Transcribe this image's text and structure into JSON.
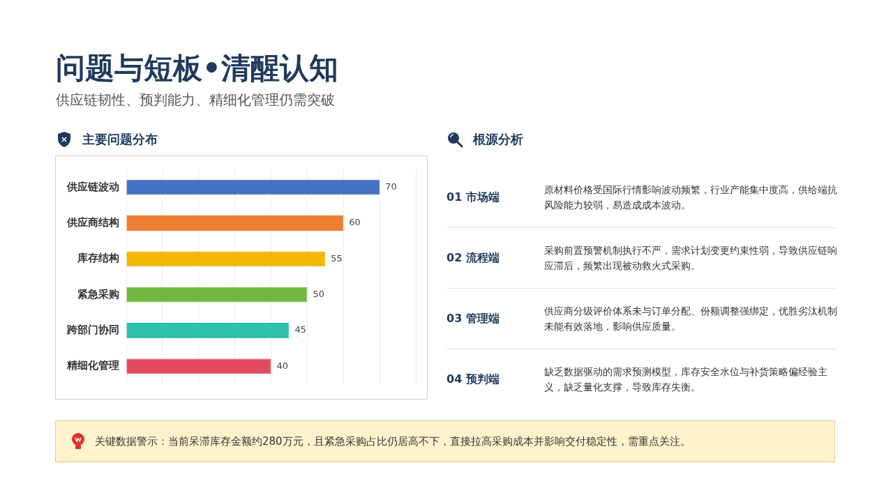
{
  "chart_data": {
    "type": "bar",
    "orientation": "horizontal",
    "title": "问题与短板•清醒认知",
    "subtitle": "供应链韧性、预判能力、精细化管理仍需突破",
    "categories": [
      "供应链波动",
      "供应商结构",
      "库存结构",
      "紧急采购",
      "跨部门协同",
      "精细化管理"
    ],
    "values": [
      70,
      60,
      55,
      50,
      45,
      40
    ],
    "colors": [
      "#4472c4",
      "#ed7d31",
      "#f2b800",
      "#70b840",
      "#2ebfad",
      "#e34a5f"
    ],
    "xlim": [
      0,
      80
    ],
    "xticks": [
      {
        "value": 0,
        "label": null
      },
      {
        "value": 10,
        "label": null
      },
      {
        "value": 20,
        "label": null
      },
      {
        "value": 30,
        "label": null
      },
      {
        "value": 40,
        "label": null
      },
      {
        "value": 50,
        "label": null
      },
      {
        "value": 60,
        "label": null
      },
      {
        "value": 70,
        "label": null
      },
      {
        "value": 80,
        "label": null
      }
    ],
    "tick_labels": "y",
    "grid": "x",
    "legend": false,
    "data_labels": true,
    "annotations": [
      "主要问题分布",
      "根源分析",
      "01 市场端",
      "原材料价格受国际行情影响波动频繁，行业产能集中度高，供给端抗风险能力较弱，易造成成本波动。",
      "02 流程端",
      "采购前置预警机制执行不严，需求计划变更约束性弱，导致供应链响应滞后，频繁出现被动救火式采购。",
      "03 管理端",
      "供应商分级评价体系未与订单分配、份额调整强绑定，优胜劣汰机制未能有效落地，影响供应质量。",
      "04 预判端",
      "缺乏数据驱动的需求预测模型，库存安全水位与补货策略偏经验主义，缺乏量化支撑，导致库存失衡。",
      "关键数据警示：当前呆滞库存金额约280万元，且紧急采购占比仍居高不下，直接拉高采购成本并影响交付稳定性，需重点关注。"
    ]
  }
}
